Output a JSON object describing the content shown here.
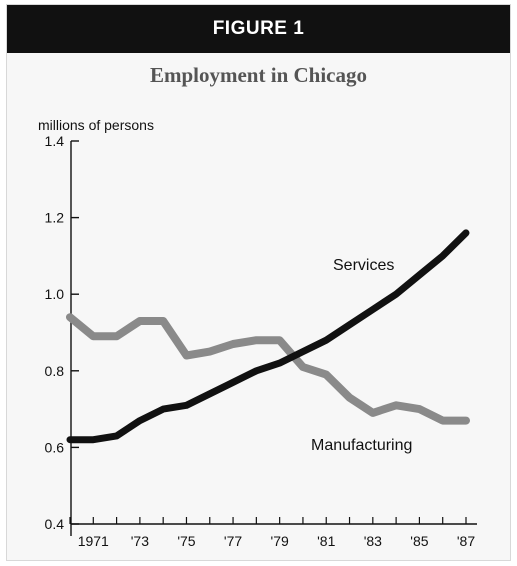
{
  "header": {
    "label": "FIGURE 1"
  },
  "chart_data": {
    "type": "line",
    "title": "Employment in Chicago",
    "ylabel": "millions of persons",
    "xlabel": "",
    "ylim": [
      0.4,
      1.4
    ],
    "yticks": [
      "0.4",
      "0.6",
      "0.8",
      "1.0",
      "1.2",
      "1.4"
    ],
    "x": [
      1970,
      1971,
      1972,
      1973,
      1974,
      1975,
      1976,
      1977,
      1978,
      1979,
      1980,
      1981,
      1982,
      1983,
      1984,
      1985,
      1986,
      1987
    ],
    "xtick_labels": [
      {
        "x": 1971,
        "label": "1971"
      },
      {
        "x": 1973,
        "label": "'73"
      },
      {
        "x": 1975,
        "label": "'75"
      },
      {
        "x": 1977,
        "label": "'77"
      },
      {
        "x": 1979,
        "label": "'79"
      },
      {
        "x": 1981,
        "label": "'81"
      },
      {
        "x": 1983,
        "label": "'83"
      },
      {
        "x": 1985,
        "label": "'85"
      },
      {
        "x": 1987,
        "label": "'87"
      }
    ],
    "grid": false,
    "series": [
      {
        "name": "Services",
        "color": "#111111",
        "values": [
          0.62,
          0.62,
          0.63,
          0.67,
          0.7,
          0.71,
          0.74,
          0.77,
          0.8,
          0.82,
          0.85,
          0.88,
          0.92,
          0.96,
          1.0,
          1.05,
          1.1,
          1.16
        ]
      },
      {
        "name": "Manufacturing",
        "color": "#8a8a8a",
        "values": [
          0.94,
          0.89,
          0.89,
          0.93,
          0.93,
          0.84,
          0.85,
          0.87,
          0.88,
          0.88,
          0.81,
          0.79,
          0.73,
          0.69,
          0.71,
          0.7,
          0.67,
          0.67
        ]
      }
    ]
  }
}
